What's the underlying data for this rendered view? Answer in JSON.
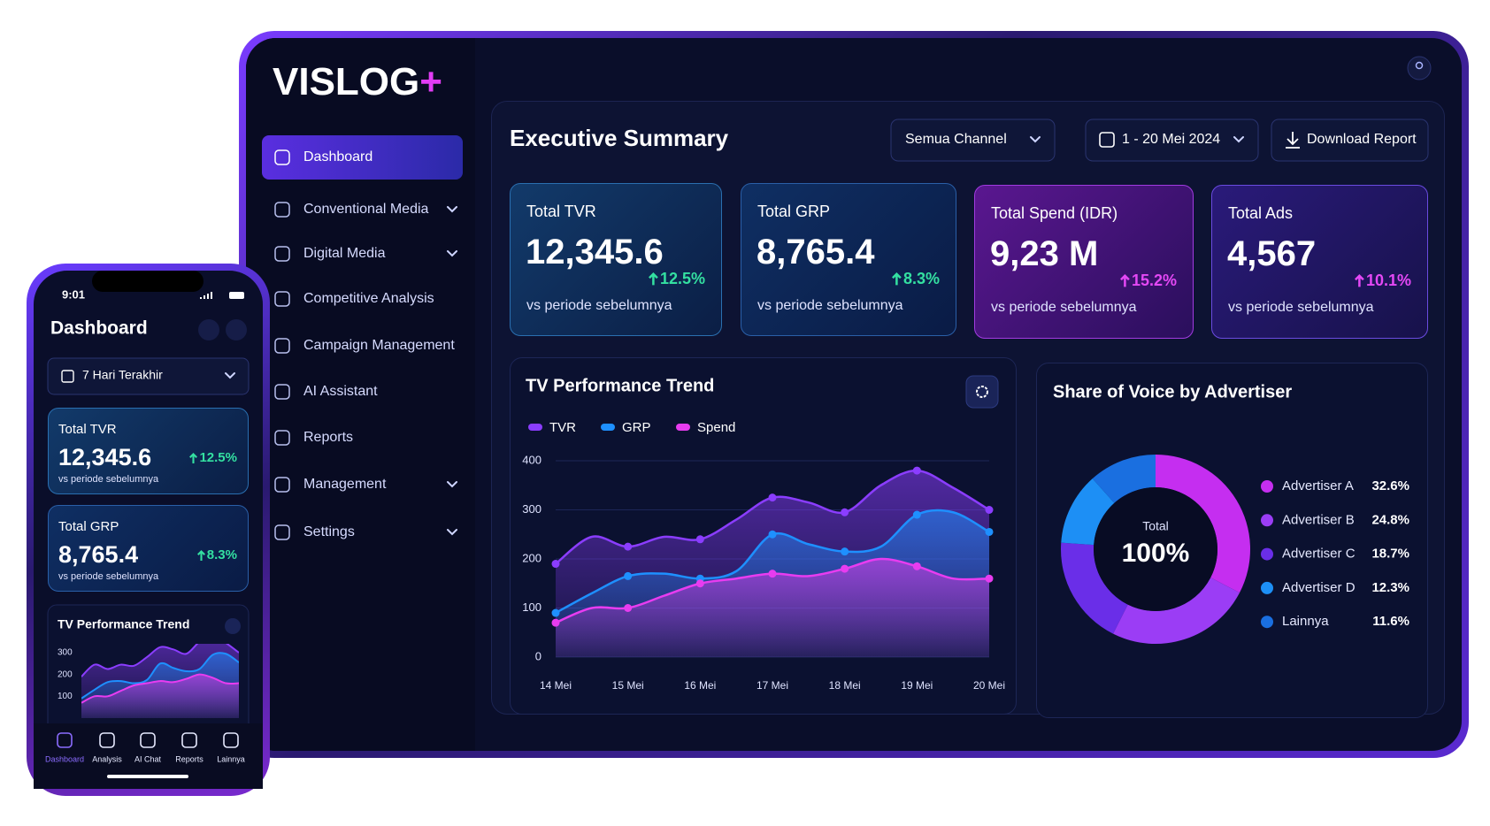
{
  "app": {
    "brand": "VISLOG",
    "brand_plus": "+"
  },
  "sidebar": {
    "items": [
      {
        "label": "Dashboard",
        "active": true,
        "expandable": false
      },
      {
        "label": "Conventional Media",
        "active": false,
        "expandable": true
      },
      {
        "label": "Digital Media",
        "active": false,
        "expandable": true
      },
      {
        "label": "Competitive Analysis",
        "active": false,
        "expandable": false
      },
      {
        "label": "Campaign Management",
        "active": false,
        "expandable": false
      },
      {
        "label": "AI Assistant",
        "active": false,
        "expandable": false
      },
      {
        "label": "Reports",
        "active": false,
        "expandable": false
      },
      {
        "label": "Management",
        "active": false,
        "expandable": true
      },
      {
        "label": "Settings",
        "active": false,
        "expandable": true
      }
    ]
  },
  "header": {
    "title": "Executive Summary",
    "channel_filter": "Semua Channel",
    "date_filter": "1 - 20 Mei 2024",
    "download": "Download Report"
  },
  "kpis": [
    {
      "label": "Total TVR",
      "value": "12,345.6",
      "change": "12.5%",
      "note": "vs periode sebelumnya",
      "change_color": "#34e0a1"
    },
    {
      "label": "Total GRP",
      "value": "8,765.4",
      "change": "8.3%",
      "note": "vs periode sebelumnya",
      "change_color": "#34e0a1"
    },
    {
      "label": "Total Spend (IDR)",
      "value": "9,23 M",
      "change": "15.2%",
      "note": "vs periode sebelumnya",
      "change_color": "#e448f5"
    },
    {
      "label": "Total Ads",
      "value": "4,567",
      "change": "10.1%",
      "note": "vs periode sebelumnya",
      "change_color": "#e448f5"
    }
  ],
  "chart_data": [
    {
      "type": "area",
      "title": "TV Performance Trend",
      "categories": [
        "14 Mei",
        null,
        "15 Mei",
        null,
        "16 Mei",
        null,
        "17 Mei",
        null,
        "18 Mei",
        null,
        "19 Mei",
        null,
        "20 Mei"
      ],
      "series": [
        {
          "name": "TVR",
          "color": "#8b3dff",
          "values": [
            190,
            245,
            225,
            245,
            240,
            280,
            325,
            315,
            295,
            350,
            380,
            345,
            300
          ]
        },
        {
          "name": "GRP",
          "color": "#1e90ff",
          "values": [
            90,
            130,
            165,
            170,
            160,
            175,
            250,
            230,
            215,
            225,
            290,
            295,
            255
          ]
        },
        {
          "name": "Spend",
          "color": "#e83cf0",
          "values": [
            70,
            100,
            100,
            125,
            150,
            160,
            170,
            165,
            180,
            200,
            185,
            160,
            160
          ]
        }
      ],
      "ylim": [
        0,
        400
      ],
      "yticks": [
        0,
        100,
        200,
        300,
        400
      ],
      "grid": true
    },
    {
      "type": "donut",
      "title": "Share of Voice by Advertiser",
      "center_label": "Total",
      "center_value": "100%",
      "categories": [
        "Advertiser A",
        "Advertiser B",
        "Advertiser C",
        "Advertiser D",
        "Lainnya"
      ],
      "values": [
        32.6,
        24.8,
        18.7,
        12.3,
        11.6
      ],
      "value_labels": [
        "32.6%",
        "24.8%",
        "18.7%",
        "12.3%",
        "11.6%"
      ],
      "colors": [
        "#c52ef0",
        "#9b3df5",
        "#6a2ee8",
        "#1d8ff5",
        "#1a6fe0"
      ]
    }
  ],
  "phone": {
    "time": "9:01",
    "title": "Dashboard",
    "filter": "7 Hari Terakhir",
    "chart": {
      "ylim": [
        0,
        300
      ],
      "yticks": [
        300,
        200,
        100
      ]
    },
    "nav": [
      {
        "label": "Dashboard",
        "active": true
      },
      {
        "label": "Analysis",
        "active": false
      },
      {
        "label": "AI Chat",
        "active": false
      },
      {
        "label": "Reports",
        "active": false
      },
      {
        "label": "Lainnya",
        "active": false
      }
    ]
  }
}
